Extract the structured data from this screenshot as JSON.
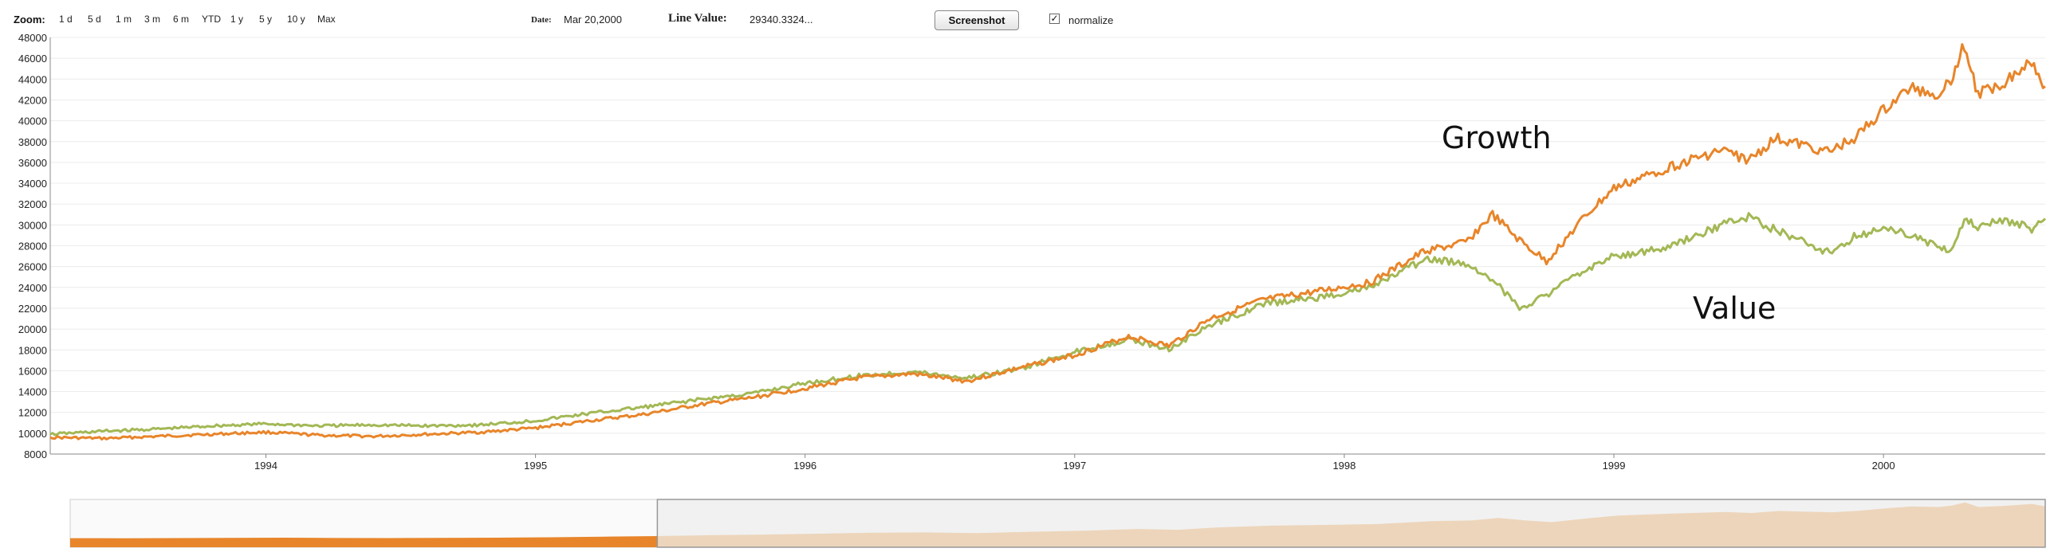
{
  "toolbar": {
    "zoom_label": "Zoom:",
    "zoom_options": [
      "1 d",
      "5 d",
      "1 m",
      "3 m",
      "6 m",
      "YTD",
      "1 y",
      "5 y",
      "10 y",
      "Max"
    ],
    "date_label": "Date:",
    "date_value": "Mar 20,2000",
    "line_value_label": "Line Value:",
    "line_value": "29340.3324...",
    "screenshot_label": "Screenshot",
    "normalize_label": "normalize",
    "normalize_checked": true,
    "checkbox_mark": "✓"
  },
  "colors": {
    "growth": "#E8852A",
    "value": "#A3B855",
    "navigator_selected": "#E8852A",
    "navigator_unselected": "#EDD5BB",
    "navigator_window": "#F1F1F1",
    "grid": "#ECECEC",
    "axis": "#888888"
  },
  "chart_data": {
    "type": "line",
    "ylim": [
      8000,
      48000
    ],
    "yticks": [
      8000,
      10000,
      12000,
      14000,
      16000,
      18000,
      20000,
      22000,
      24000,
      26000,
      28000,
      30000,
      32000,
      34000,
      36000,
      38000,
      40000,
      42000,
      44000,
      46000,
      48000
    ],
    "xlim": [
      1993.2,
      2000.6
    ],
    "xticks": [
      "1994",
      "1995",
      "1996",
      "1997",
      "1998",
      "1999",
      "2000"
    ],
    "annotations": [
      "Growth",
      "Value"
    ],
    "grid": true,
    "series": [
      {
        "name": "Growth",
        "x": [
          1993.2,
          1993.4,
          1993.6,
          1993.8,
          1994.0,
          1994.2,
          1994.4,
          1994.6,
          1994.8,
          1995.0,
          1995.2,
          1995.4,
          1995.6,
          1995.8,
          1996.0,
          1996.2,
          1996.4,
          1996.6,
          1996.8,
          1997.0,
          1997.2,
          1997.35,
          1997.5,
          1997.7,
          1997.9,
          1998.1,
          1998.3,
          1998.45,
          1998.55,
          1998.65,
          1998.75,
          1998.9,
          1999.0,
          1999.2,
          1999.4,
          1999.5,
          1999.6,
          1999.8,
          1999.9,
          2000.0,
          2000.1,
          2000.2,
          2000.25,
          2000.3,
          2000.35,
          2000.45,
          2000.55,
          2000.6
        ],
        "y": [
          9600,
          9500,
          9700,
          9900,
          10100,
          9800,
          9700,
          9900,
          10100,
          10500,
          11200,
          11800,
          12700,
          13400,
          14300,
          15300,
          15700,
          15000,
          16300,
          17500,
          19300,
          18400,
          21000,
          22800,
          23600,
          24500,
          27500,
          28300,
          31000,
          28500,
          26500,
          31000,
          33500,
          35500,
          37200,
          36200,
          38300,
          37000,
          38500,
          41000,
          43200,
          42500,
          44000,
          47300,
          42500,
          43800,
          45800,
          43300
        ]
      },
      {
        "name": "Value",
        "x": [
          1993.2,
          1993.4,
          1993.6,
          1993.8,
          1994.0,
          1994.2,
          1994.4,
          1994.6,
          1994.8,
          1995.0,
          1995.2,
          1995.4,
          1995.6,
          1995.8,
          1996.0,
          1996.2,
          1996.4,
          1996.6,
          1996.8,
          1997.0,
          1997.2,
          1997.35,
          1997.5,
          1997.7,
          1997.9,
          1998.1,
          1998.3,
          1998.45,
          1998.55,
          1998.65,
          1998.75,
          1998.9,
          1999.0,
          1999.2,
          1999.4,
          1999.5,
          1999.6,
          1999.8,
          1999.9,
          2000.0,
          2000.1,
          2000.2,
          2000.25,
          2000.3,
          2000.35,
          2000.45,
          2000.55,
          2000.6
        ],
        "y": [
          9900,
          10200,
          10400,
          10700,
          10900,
          10700,
          10800,
          10700,
          10800,
          11200,
          11900,
          12500,
          13200,
          13800,
          14800,
          15500,
          15900,
          15300,
          16200,
          17800,
          19000,
          18100,
          20300,
          22400,
          23000,
          24000,
          26700,
          26300,
          24800,
          22000,
          23300,
          25800,
          27000,
          27800,
          30000,
          30800,
          29500,
          27300,
          29000,
          29600,
          29100,
          28000,
          27600,
          30500,
          29800,
          30500,
          29600,
          30600
        ]
      }
    ],
    "navigator": {
      "selected_range": [
        1993.2,
        1995.4
      ]
    }
  }
}
